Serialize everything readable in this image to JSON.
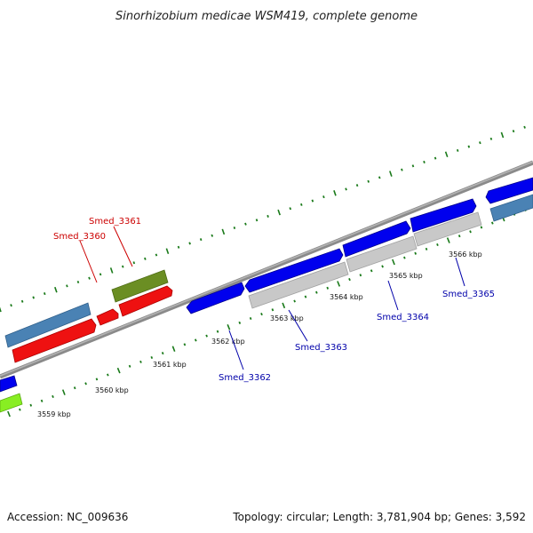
{
  "header": {
    "title": "Sinorhizobium medicae WSM419, complete genome"
  },
  "footer": {
    "accession": "Accession: NC_009636",
    "summary": "Topology: circular; Length: 3,781,904 bp; Genes: 3,592"
  },
  "colors": {
    "backbone": "#8a8a8a",
    "tick": "#1a7a1a",
    "forward_gene": "#0000ee",
    "grey_gene": "#c8c8c8",
    "steelblue_gene": "#4a82b4",
    "red_gene": "#ee1111",
    "olive_gene": "#6b8e23",
    "lime_gene": "#88ee22",
    "label_blue": "#0000aa",
    "label_red": "#cc0000"
  },
  "ticks": [
    {
      "label": "3559 kbp"
    },
    {
      "label": "3560 kbp"
    },
    {
      "label": "3561 kbp"
    },
    {
      "label": "3562 kbp"
    },
    {
      "label": "3563 kbp"
    },
    {
      "label": "3564 kbp"
    },
    {
      "label": "3565 kbp"
    },
    {
      "label": "3566 kbp"
    }
  ],
  "gene_labels": [
    {
      "text": "Smed_3361",
      "color": "red"
    },
    {
      "text": "Smed_3360",
      "color": "red"
    },
    {
      "text": "Smed_3362",
      "color": "blue"
    },
    {
      "text": "Smed_3363",
      "color": "blue"
    },
    {
      "text": "Smed_3364",
      "color": "blue"
    },
    {
      "text": "Smed_3365",
      "color": "blue"
    }
  ]
}
